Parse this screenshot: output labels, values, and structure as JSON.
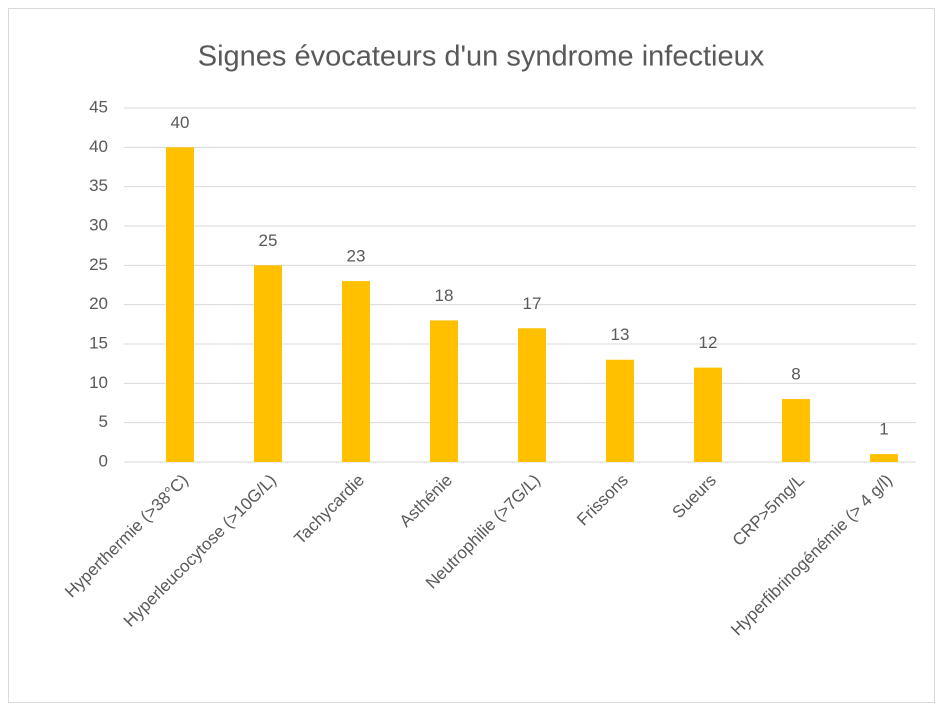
{
  "chart_data": {
    "type": "bar",
    "title": "Signes évocateurs d'un syndrome infectieux",
    "categories": [
      "Hyperthermie (>38°C)",
      "Hyperleucocytose (>10G/L)",
      "Tachycardie",
      "Asthénie",
      "Neutrophilie (>7G/L)",
      "Frissons",
      "Sueurs",
      "CRP>5mg/L",
      "Hyperfibrinogénémie (> 4 g/l)"
    ],
    "values": [
      40,
      25,
      23,
      18,
      17,
      13,
      12,
      8,
      1
    ],
    "color": "#ffc000",
    "ylim": [
      0,
      45
    ],
    "yticks": [
      0,
      5,
      10,
      15,
      20,
      25,
      30,
      35,
      40,
      45
    ],
    "grid": true,
    "data_labels": true
  }
}
